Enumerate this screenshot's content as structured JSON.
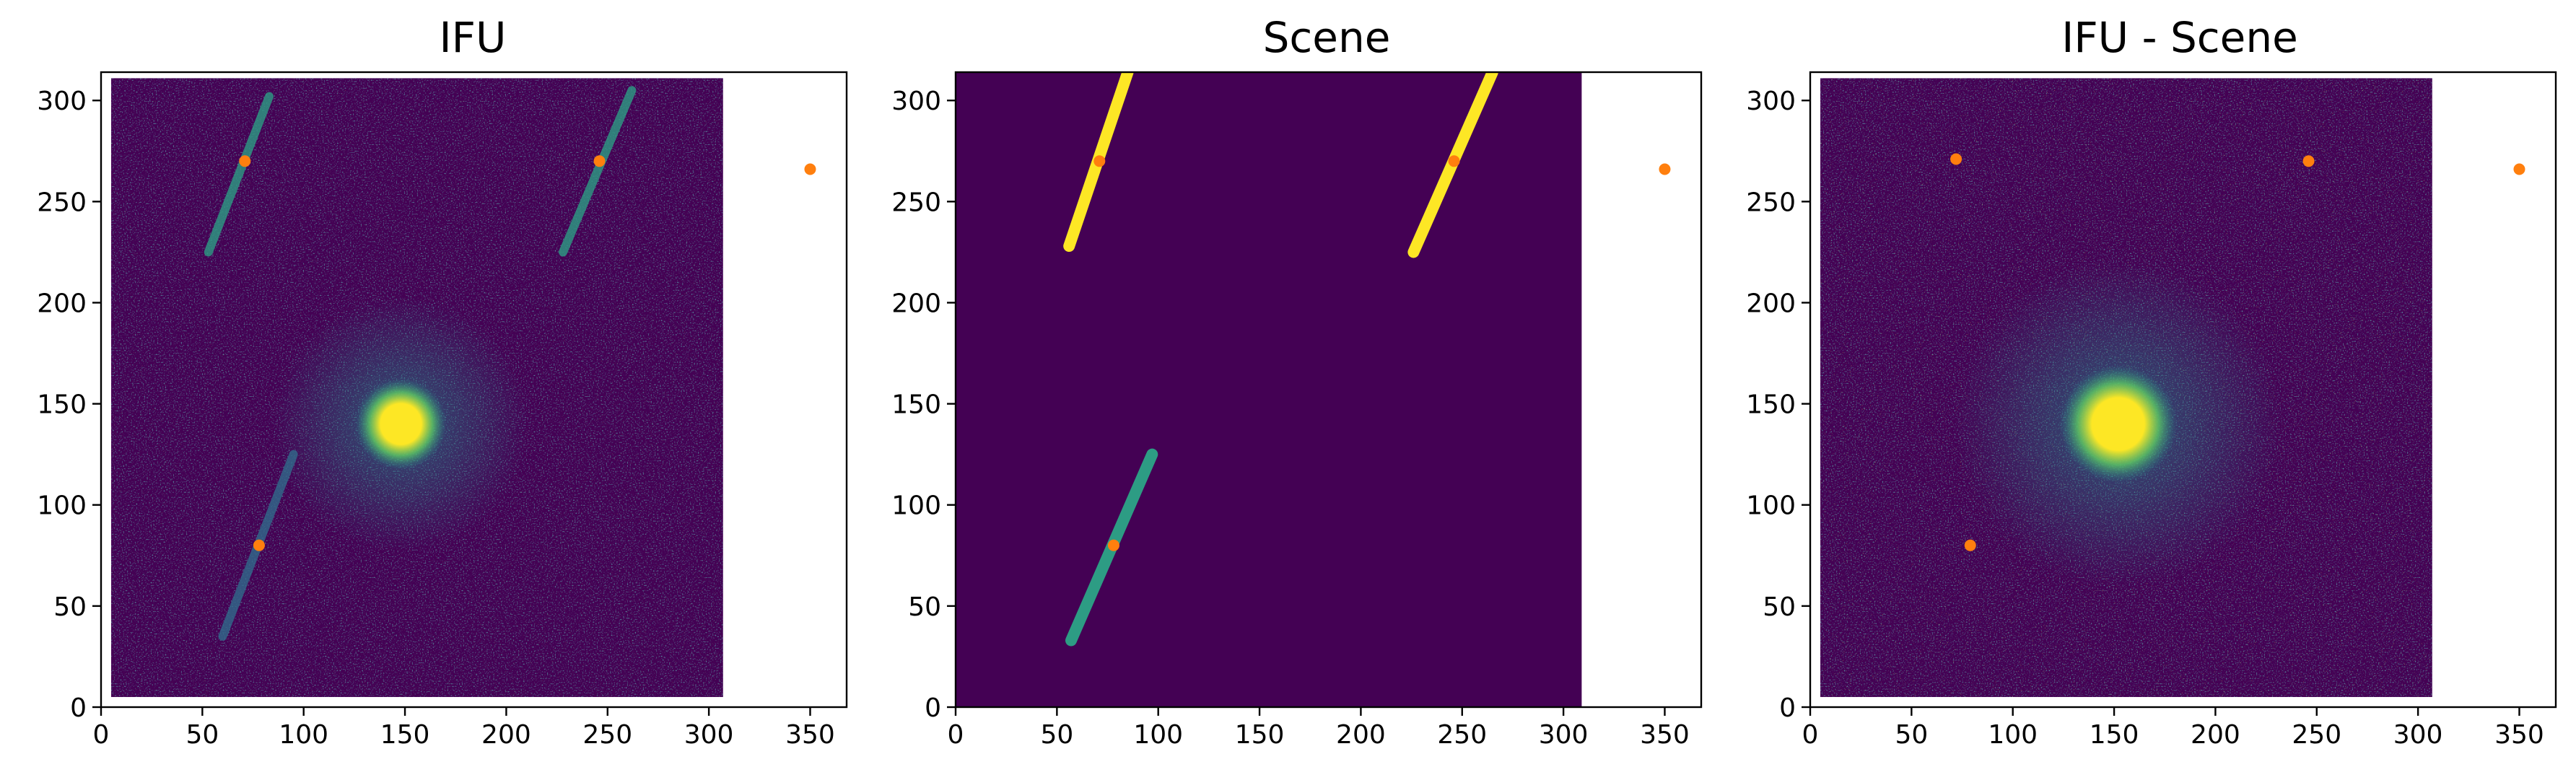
{
  "figure": {
    "panel_count": 3
  },
  "chart_data": [
    {
      "type": "heatmap",
      "title": "IFU",
      "xlabel": "",
      "ylabel": "",
      "xlim": [
        0,
        368
      ],
      "ylim": [
        0,
        314
      ],
      "xticks": [
        0,
        50,
        100,
        150,
        200,
        250,
        300,
        350
      ],
      "yticks": [
        0,
        50,
        100,
        150,
        200,
        250,
        300
      ],
      "colormap": "viridis",
      "grid": false,
      "image_extent": {
        "x": [
          5,
          307
        ],
        "y": [
          5,
          311
        ]
      },
      "bright_source": {
        "x": 148,
        "y": 140,
        "radius": 14
      },
      "streaks": [
        {
          "x0": 53,
          "y0": 225,
          "x1": 83,
          "y1": 302,
          "brightness": 0.55
        },
        {
          "x0": 228,
          "y0": 225,
          "x1": 262,
          "y1": 305,
          "brightness": 0.55
        },
        {
          "x0": 60,
          "y0": 35,
          "x1": 95,
          "y1": 125,
          "brightness": 0.35
        }
      ],
      "markers": {
        "color": "#ff7f0e",
        "points": [
          {
            "x": 71,
            "y": 270
          },
          {
            "x": 246,
            "y": 270
          },
          {
            "x": 350,
            "y": 266
          },
          {
            "x": 78,
            "y": 80
          }
        ]
      }
    },
    {
      "type": "heatmap",
      "title": "Scene",
      "xlabel": "",
      "ylabel": "",
      "xlim": [
        0,
        368
      ],
      "ylim": [
        0,
        314
      ],
      "xticks": [
        0,
        50,
        100,
        150,
        200,
        250,
        300,
        350
      ],
      "yticks": [
        0,
        50,
        100,
        150,
        200,
        250,
        300
      ],
      "colormap": "viridis",
      "grid": false,
      "image_extent": {
        "x": [
          0,
          309
        ],
        "y": [
          0,
          314
        ]
      },
      "streaks": [
        {
          "x0": 56,
          "y0": 228,
          "x1": 85,
          "y1": 314,
          "brightness": 1.0
        },
        {
          "x0": 226,
          "y0": 225,
          "x1": 265,
          "y1": 314,
          "brightness": 1.0
        },
        {
          "x0": 57,
          "y0": 33,
          "x1": 97,
          "y1": 125,
          "brightness": 0.55
        }
      ],
      "markers": {
        "color": "#ff7f0e",
        "points": [
          {
            "x": 71,
            "y": 270
          },
          {
            "x": 246,
            "y": 270
          },
          {
            "x": 350,
            "y": 266
          },
          {
            "x": 78,
            "y": 80
          }
        ]
      }
    },
    {
      "type": "heatmap",
      "title": "IFU - Scene",
      "xlabel": "",
      "ylabel": "",
      "xlim": [
        0,
        368
      ],
      "ylim": [
        0,
        314
      ],
      "xticks": [
        0,
        50,
        100,
        150,
        200,
        250,
        300,
        350
      ],
      "yticks": [
        0,
        50,
        100,
        150,
        200,
        250,
        300
      ],
      "colormap": "viridis",
      "grid": false,
      "image_extent": {
        "x": [
          5,
          307
        ],
        "y": [
          5,
          311
        ]
      },
      "bright_source": {
        "x": 152,
        "y": 140,
        "radius": 18
      },
      "streaks": [],
      "markers": {
        "color": "#ff7f0e",
        "points": [
          {
            "x": 72,
            "y": 271
          },
          {
            "x": 246,
            "y": 270
          },
          {
            "x": 350,
            "y": 266
          },
          {
            "x": 79,
            "y": 80
          }
        ]
      }
    }
  ]
}
